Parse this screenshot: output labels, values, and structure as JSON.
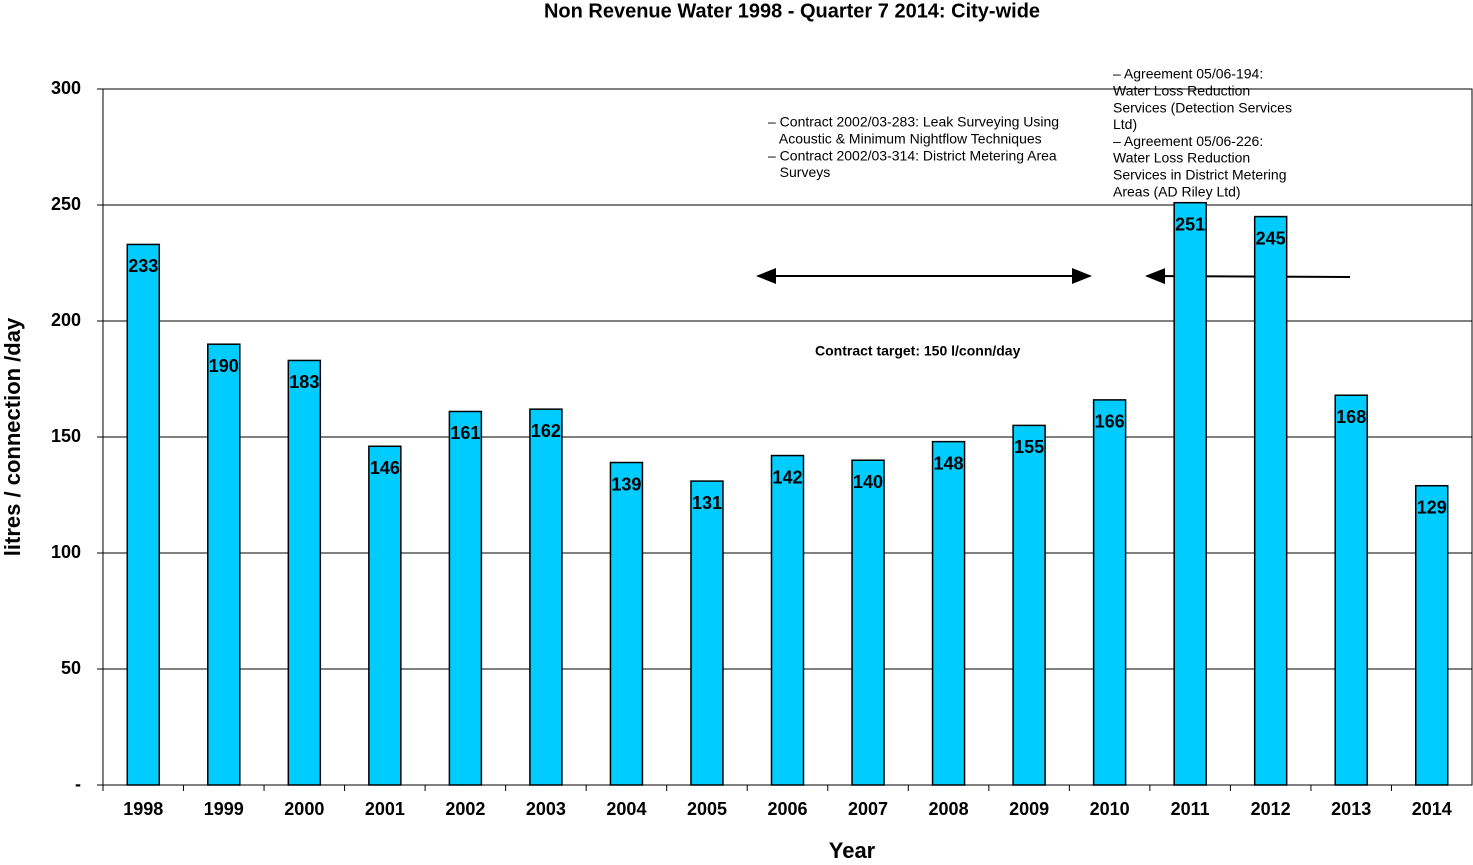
{
  "chart_data": {
    "type": "bar",
    "title": "Non Revenue Water 1998 - Quarter 7 2014: City-wide",
    "x_label": "Year",
    "y_label": "litres / connection /day",
    "categories": [
      "1998",
      "1999",
      "2000",
      "2001",
      "2002",
      "2003",
      "2004",
      "2005",
      "2006",
      "2007",
      "2008",
      "2009",
      "2010",
      "2011",
      "2012",
      "2013",
      "2014"
    ],
    "values": [
      233,
      190,
      183,
      146,
      161,
      162,
      139,
      131,
      142,
      140,
      148,
      155,
      166,
      251,
      245,
      168,
      129
    ],
    "color": "#00ccff",
    "ylim": [
      0,
      300
    ],
    "yticks": [
      {
        "value": 0,
        "label": "-"
      },
      50,
      100,
      150,
      200,
      250,
      300
    ],
    "grid": true,
    "annotations": [
      [
        "– Contract 2002/03-283: Leak Surveying Using",
        "   Acoustic & Minimum Nightflow Techniques",
        "– Contract 2002/03-314: District Metering Area",
        "   Surveys"
      ],
      [
        "– Agreement 05/06-194:",
        "Water Loss Reduction",
        "Services (Detection Services",
        "Ltd)",
        "– Agreement 05/06-226:",
        "Water Loss Reduction",
        "Services in District Metering",
        "Areas (AD Riley Ltd)"
      ],
      "Contract target: 150 l/conn/day"
    ]
  }
}
